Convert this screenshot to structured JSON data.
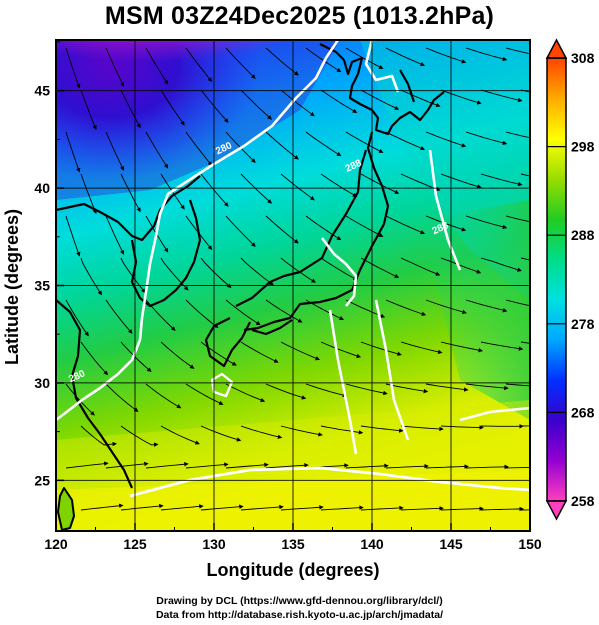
{
  "title": "MSM 03Z24Dec2025 (1013.2hPa)",
  "xaxis": {
    "label": "Longitude (degrees)",
    "range": [
      120,
      150
    ],
    "ticks": [
      120,
      125,
      130,
      135,
      140,
      145,
      150
    ]
  },
  "yaxis": {
    "label": "Latitude  (degrees)",
    "range": [
      22.4,
      47.6
    ],
    "ticks": [
      25,
      30,
      35,
      40,
      45
    ]
  },
  "colorbar": {
    "range": [
      258,
      308
    ],
    "ticks": [
      258,
      268,
      278,
      288,
      298,
      308
    ],
    "colors": [
      "#ff3fbf",
      "#9400d3",
      "#3a00cc",
      "#0030ff",
      "#00a8ff",
      "#00e0e0",
      "#00dd88",
      "#22cc22",
      "#99dd00",
      "#ffff00",
      "#ffaa00",
      "#ff4400"
    ]
  },
  "contour_labels": [
    {
      "text": "280",
      "lon": 130.7,
      "lat": 41.9
    },
    {
      "text": "280",
      "lon": 121.4,
      "lat": 30.2
    },
    {
      "text": "288",
      "lon": 138.9,
      "lat": 41.0
    },
    {
      "text": "288",
      "lon": 144.4,
      "lat": 37.8
    }
  ],
  "credits": {
    "line1": "Drawing by DCL (https://www.gfd-dennou.org/library/dcl/)",
    "line2": "Data from http://database.rish.kyoto-u.ac.jp/arch/jmadata/"
  }
}
